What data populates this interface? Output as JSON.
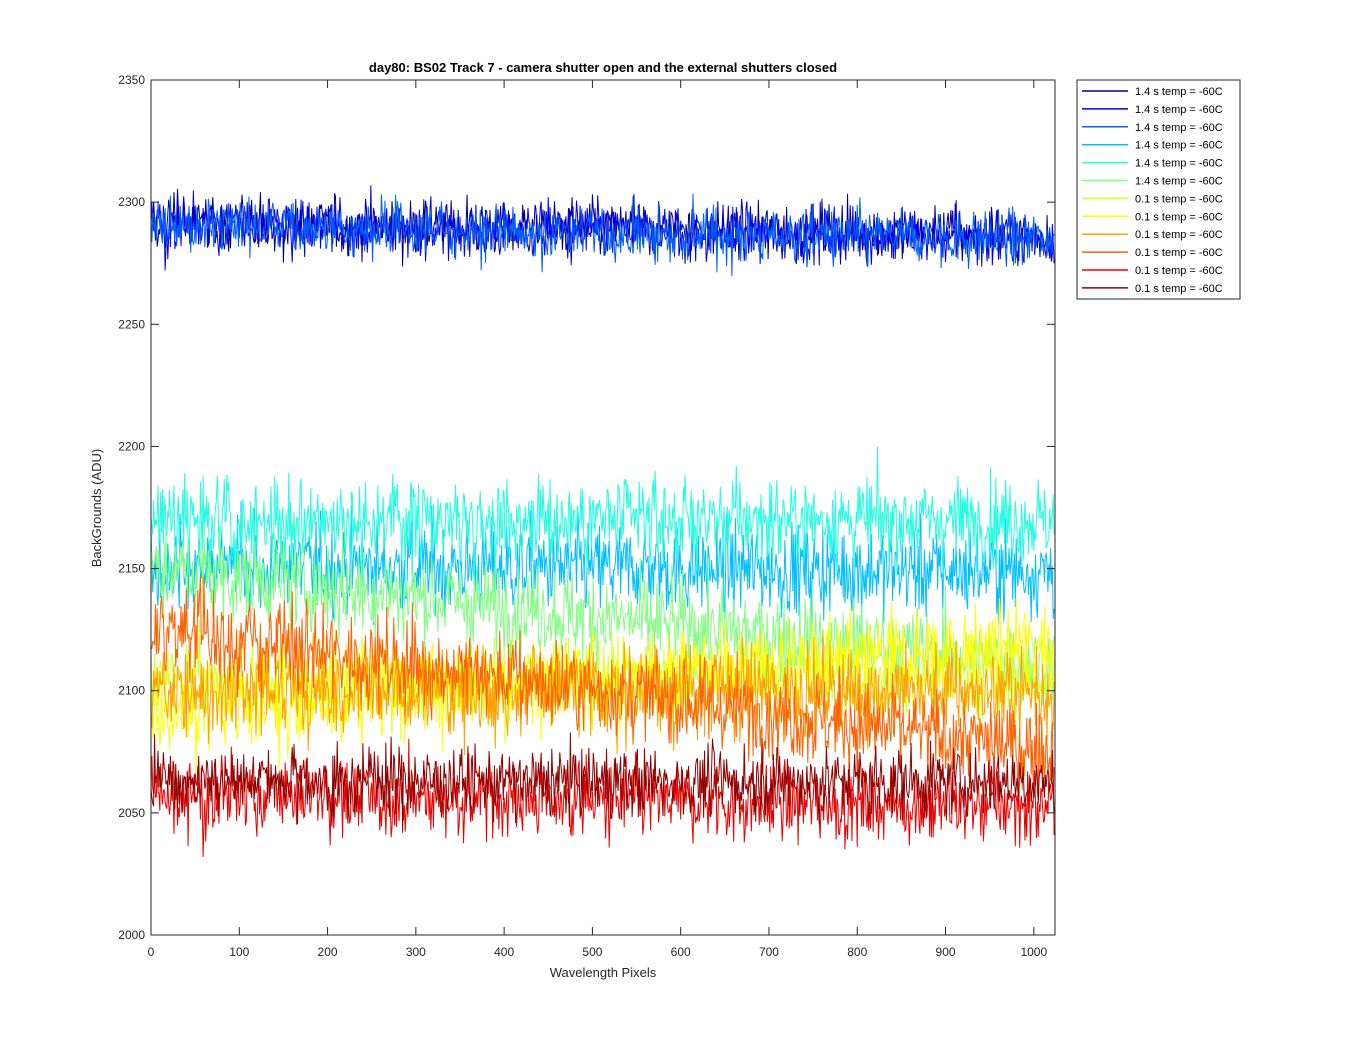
{
  "chart_data": {
    "type": "line",
    "title": "day80: BS02  Track 7 - camera shutter open and the external shutters closed",
    "xlabel": "Wavelength Pixels",
    "ylabel": "BackGrounds (ADU)",
    "xlim": [
      0,
      1024
    ],
    "ylim": [
      2000,
      2350
    ],
    "xticks": [
      0,
      100,
      200,
      300,
      400,
      500,
      600,
      700,
      800,
      900,
      1000
    ],
    "yticks": [
      2000,
      2050,
      2100,
      2150,
      2200,
      2250,
      2300,
      2350
    ],
    "grid": false,
    "legend_position": "outside-top-right",
    "x": {
      "start": 0,
      "end": 1023,
      "step": 1
    },
    "series": [
      {
        "name": "1.4 s temp = -60C",
        "color": "#00008f",
        "mean": 2289,
        "noise": 8,
        "trend": -5
      },
      {
        "name": "1.4 s temp = -60C",
        "color": "#0000ef",
        "mean": 2288,
        "noise": 8,
        "trend": -5
      },
      {
        "name": "1.4 s temp = -60C",
        "color": "#0060ff",
        "mean": 2287,
        "noise": 8,
        "trend": -5
      },
      {
        "name": "1.4 s temp = -60C",
        "color": "#00bfff",
        "mean": 2150,
        "noise": 13,
        "trend": -2
      },
      {
        "name": "1.4 s temp = -60C",
        "color": "#20ffdf",
        "mean": 2170,
        "noise": 12,
        "trend": 0
      },
      {
        "name": "1.4 s temp = -60C",
        "color": "#80ff80",
        "mean": 2130,
        "noise": 13,
        "trend": -40
      },
      {
        "name": "0.1 s temp = -60C",
        "color": "#dfff20",
        "mean": 2105,
        "noise": 12,
        "trend": 0
      },
      {
        "name": "0.1 s temp = -60C",
        "color": "#ffff00",
        "mean": 2105,
        "noise": 12,
        "trend": 30
      },
      {
        "name": "0.1 s temp = -60C",
        "color": "#ffa000",
        "mean": 2100,
        "noise": 13,
        "trend": 0
      },
      {
        "name": "0.1 s temp = -60C",
        "color": "#ff6000",
        "mean": 2100,
        "noise": 13,
        "trend": -50
      },
      {
        "name": "0.1 s temp = -60C",
        "color": "#ef0000",
        "mean": 2055,
        "noise": 11,
        "trend": -5
      },
      {
        "name": "0.1 s temp = -60C",
        "color": "#8f0000",
        "mean": 2063,
        "noise": 10,
        "trend": 0
      }
    ]
  }
}
